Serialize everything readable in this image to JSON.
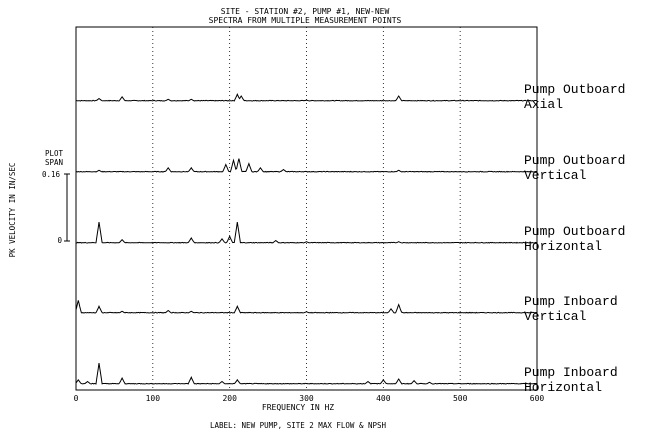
{
  "chart_data": {
    "type": "line",
    "title": "SITE - STATION #2, PUMP #1, NEW-NEW",
    "subtitle": "SPECTRA FROM MULTIPLE MEASUREMENT POINTS",
    "xlabel": "FREQUENCY IN HZ",
    "ylabel": "PK VELOCITY IN IN/SEC",
    "caption": "LABEL: NEW PUMP, SITE 2 MAX FLOW & NPSH",
    "xlim": [
      0,
      600
    ],
    "x_ticks": [
      "0",
      "100",
      "200",
      "300",
      "400",
      "500",
      "600"
    ],
    "grid": "vertical dotted at 100, 200, 300, 400, 500",
    "scale_bar": {
      "title_line1": "PLOT",
      "title_line2": "SPAN",
      "top_label": "0.16",
      "bottom_label": "0",
      "span_in_per_sec": 0.16
    },
    "series": [
      {
        "name": "Pump Outboard Axial",
        "label_lines": [
          "Pump Outboard",
          "Axial"
        ],
        "baseline": 0.0,
        "peaks": [
          [
            30,
            0.006
          ],
          [
            60,
            0.01
          ],
          [
            120,
            0.004
          ],
          [
            150,
            0.004
          ],
          [
            210,
            0.016
          ],
          [
            215,
            0.012
          ],
          [
            300,
            0.002
          ],
          [
            420,
            0.012
          ]
        ]
      },
      {
        "name": "Pump Outboard Vertical",
        "label_lines": [
          "Pump Outboard",
          "Vertical"
        ],
        "baseline": 0.0,
        "peaks": [
          [
            30,
            0.004
          ],
          [
            120,
            0.01
          ],
          [
            150,
            0.01
          ],
          [
            195,
            0.018
          ],
          [
            205,
            0.028
          ],
          [
            212,
            0.032
          ],
          [
            225,
            0.02
          ],
          [
            240,
            0.01
          ],
          [
            270,
            0.006
          ],
          [
            420,
            0.004
          ]
        ]
      },
      {
        "name": "Pump Outboard Horizontal",
        "label_lines": [
          "Pump Outboard",
          "Horizontal"
        ],
        "baseline": 0.0,
        "peaks": [
          [
            30,
            0.05
          ],
          [
            60,
            0.008
          ],
          [
            150,
            0.012
          ],
          [
            190,
            0.01
          ],
          [
            200,
            0.016
          ],
          [
            210,
            0.05
          ],
          [
            260,
            0.006
          ],
          [
            300,
            0.003
          ],
          [
            420,
            0.003
          ]
        ]
      },
      {
        "name": "Pump Inboard Vertical",
        "label_lines": [
          "Pump Inboard",
          "Vertical"
        ],
        "baseline": 0.0,
        "peaks": [
          [
            3,
            0.03
          ],
          [
            30,
            0.016
          ],
          [
            60,
            0.004
          ],
          [
            120,
            0.006
          ],
          [
            150,
            0.004
          ],
          [
            210,
            0.016
          ],
          [
            300,
            0.003
          ],
          [
            410,
            0.01
          ],
          [
            420,
            0.02
          ]
        ]
      },
      {
        "name": "Pump Inboard Horizontal",
        "label_lines": [
          "Pump Inboard",
          "Horizontal"
        ],
        "baseline": 0.0,
        "peaks": [
          [
            3,
            0.01
          ],
          [
            15,
            0.006
          ],
          [
            30,
            0.05
          ],
          [
            60,
            0.014
          ],
          [
            150,
            0.016
          ],
          [
            190,
            0.006
          ],
          [
            210,
            0.01
          ],
          [
            380,
            0.006
          ],
          [
            400,
            0.01
          ],
          [
            420,
            0.012
          ],
          [
            440,
            0.008
          ],
          [
            460,
            0.004
          ]
        ]
      }
    ]
  }
}
